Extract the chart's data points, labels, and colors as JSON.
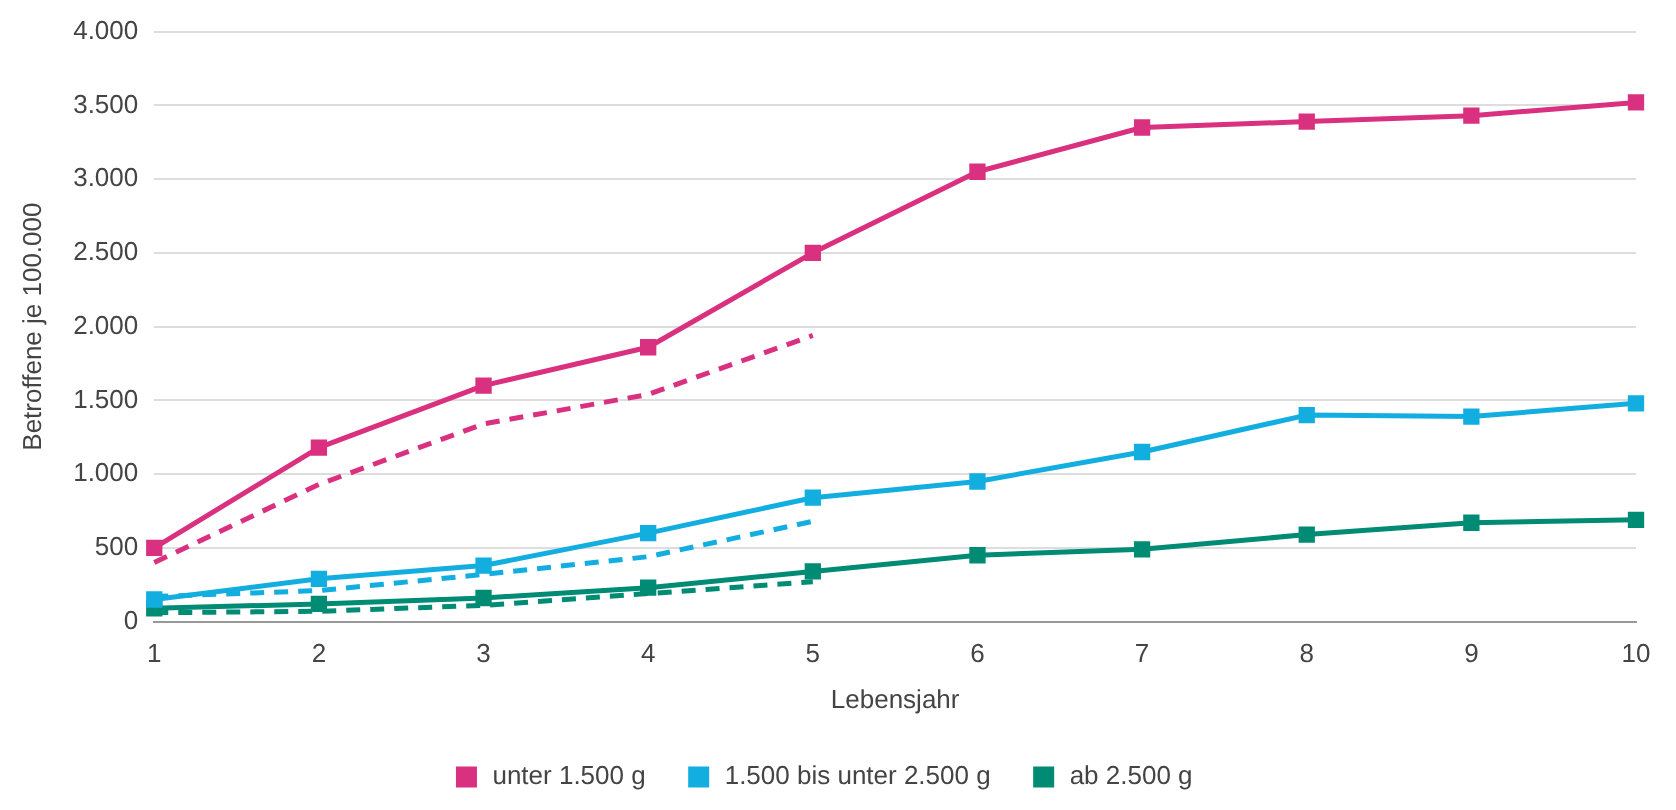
{
  "chart_data": {
    "type": "line",
    "xlabel": "Lebensjahr",
    "ylabel": "Betroffene je 100.000",
    "categories": [
      "1",
      "2",
      "3",
      "4",
      "5",
      "6",
      "7",
      "8",
      "9",
      "10"
    ],
    "series": [
      {
        "name": "unter 1.500 g",
        "color": "#d9307f",
        "marker": "square",
        "line_style": "solid",
        "values": [
          500,
          1180,
          1600,
          1860,
          2500,
          3050,
          3350,
          3390,
          3430,
          3520
        ]
      },
      {
        "name": "1.500 bis unter 2.500 g",
        "color": "#13aee0",
        "marker": "square",
        "line_style": "solid",
        "values": [
          150,
          290,
          380,
          600,
          840,
          950,
          1150,
          1400,
          1390,
          1480
        ]
      },
      {
        "name": "ab 2.500 g",
        "color": "#008b74",
        "marker": "square",
        "line_style": "solid",
        "values": [
          90,
          120,
          160,
          230,
          340,
          450,
          490,
          590,
          670,
          690
        ]
      },
      {
        "color": "#d9307f",
        "marker": "none",
        "line_style": "dashed",
        "values": [
          400,
          930,
          1340,
          1540,
          1940,
          null,
          null,
          null,
          null,
          null
        ]
      },
      {
        "color": "#13aee0",
        "marker": "none",
        "line_style": "dashed",
        "values": [
          170,
          210,
          320,
          440,
          680,
          null,
          null,
          null,
          null,
          null
        ]
      },
      {
        "color": "#008b74",
        "marker": "none",
        "line_style": "dashed",
        "values": [
          60,
          70,
          110,
          190,
          270,
          null,
          null,
          null,
          null,
          null
        ]
      }
    ],
    "ylim": [
      0,
      4000
    ],
    "yticks": [
      {
        "value": 0,
        "label": "0"
      },
      {
        "value": 500,
        "label": "500"
      },
      {
        "value": 1000,
        "label": "1.000"
      },
      {
        "value": 1500,
        "label": "1.500"
      },
      {
        "value": 2000,
        "label": "2.000"
      },
      {
        "value": 2500,
        "label": "2.500"
      },
      {
        "value": 3000,
        "label": "3.000"
      },
      {
        "value": 3500,
        "label": "3.500"
      },
      {
        "value": 4000,
        "label": "4.000"
      }
    ],
    "grid": "y",
    "legend": "bottom"
  }
}
